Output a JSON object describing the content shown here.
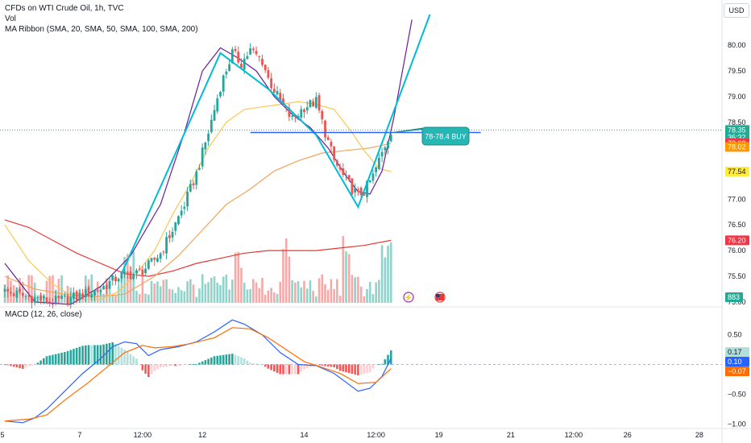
{
  "header": {
    "title": "CFDs on WTI Crude Oil, 1h, TVC",
    "vol_label": "Vol",
    "ma_ribbon_label": "MA Ribbon (SMA, 20, SMA, 50, SMA, 100, SMA, 200)",
    "macd_label": "MACD (12, 26, close)",
    "currency_button": "USD"
  },
  "annotation": {
    "label": "78-78.4 BUY"
  },
  "price_axis": {
    "ticks": [
      {
        "value": 80.0,
        "label": "80.00"
      },
      {
        "value": 79.5,
        "label": "79.50"
      },
      {
        "value": 79.0,
        "label": "79.00"
      },
      {
        "value": 78.5,
        "label": "78.50"
      },
      {
        "value": 77.0,
        "label": "77.00"
      },
      {
        "value": 76.5,
        "label": "76.50"
      },
      {
        "value": 76.0,
        "label": "76.00"
      },
      {
        "value": 75.5,
        "label": "75.50"
      },
      {
        "value": 75.0,
        "label": "75.00"
      }
    ],
    "tags": [
      {
        "value": 78.35,
        "label": "78.35",
        "sub": "36:32",
        "color": "#22ab94",
        "text": "light"
      },
      {
        "value": 78.09,
        "label": "78.09",
        "color": "#f23645",
        "text": "light"
      },
      {
        "value": 78.02,
        "label": "78.02",
        "color": "#ff9800",
        "text": "light"
      },
      {
        "value": 77.54,
        "label": "77.54",
        "color": "#ffeb3b",
        "text": "dark"
      },
      {
        "value": 76.2,
        "label": "76.20",
        "color": "#f23645",
        "text": "light"
      }
    ],
    "volume_tag": {
      "label": "883",
      "color": "#22ab94"
    }
  },
  "macd_axis": {
    "ticks": [
      {
        "value": 0.5,
        "label": "0.50"
      },
      {
        "value": -0.5,
        "label": "−0.50"
      },
      {
        "value": -1.0,
        "label": "−1.00"
      }
    ],
    "tags": [
      {
        "value": 0.17,
        "label": "0.17",
        "color": "#b2dfdb",
        "text": "dark"
      },
      {
        "value": 0.1,
        "label": "0.10",
        "color": "#2962ff",
        "text": "light"
      },
      {
        "value": -0.07,
        "label": "−0.07",
        "color": "#ff6d00",
        "text": "light"
      }
    ]
  },
  "time_axis": {
    "labels": [
      {
        "bar": -4,
        "label": "5"
      },
      {
        "bar": 25,
        "label": "7"
      },
      {
        "bar": 46,
        "label": "12:00"
      },
      {
        "bar": 66,
        "label": "12"
      },
      {
        "bar": 100,
        "label": "14"
      },
      {
        "bar": 124,
        "label": "12:00"
      },
      {
        "bar": 145,
        "label": "19"
      },
      {
        "bar": 169,
        "label": "21"
      },
      {
        "bar": 190,
        "label": "12:00"
      },
      {
        "bar": 208,
        "label": "26"
      },
      {
        "bar": 232,
        "label": "28"
      }
    ]
  },
  "colors": {
    "up": "#26a69a",
    "down": "#ef5350",
    "vol_up": "#8fd3cb",
    "vol_down": "#f7a9a7",
    "ma20": "#6a1b9a",
    "ma50": "#f9c74f",
    "ma100": "#f4a259",
    "ma200": "#e53935",
    "macd_line": "#2962ff",
    "signal_line": "#ff6d00",
    "drawing": "#00bcd4",
    "hline": "#2962ff"
  },
  "chart_data": {
    "type": "candlestick",
    "symbol": "WTI Crude Oil",
    "interval": "1h",
    "price_range": [
      74.95,
      80.6
    ],
    "close_path": [
      [
        0,
        75.2
      ],
      [
        8,
        75.1
      ],
      [
        16,
        75.0
      ],
      [
        24,
        75.1
      ],
      [
        32,
        75.25
      ],
      [
        38,
        75.5
      ],
      [
        44,
        75.55
      ],
      [
        48,
        75.7
      ],
      [
        52,
        75.95
      ],
      [
        56,
        76.4
      ],
      [
        60,
        76.9
      ],
      [
        64,
        77.5
      ],
      [
        68,
        78.3
      ],
      [
        72,
        79.2
      ],
      [
        76,
        79.85
      ],
      [
        79,
        79.65
      ],
      [
        82,
        79.9
      ],
      [
        86,
        79.7
      ],
      [
        88,
        79.35
      ],
      [
        92,
        78.9
      ],
      [
        96,
        78.55
      ],
      [
        100,
        78.8
      ],
      [
        104,
        78.9
      ],
      [
        107,
        78.3
      ],
      [
        110,
        77.75
      ],
      [
        113,
        77.45
      ],
      [
        116,
        77.2
      ],
      [
        118,
        77.1
      ],
      [
        120,
        77.15
      ],
      [
        123,
        77.45
      ],
      [
        126,
        77.9
      ],
      [
        129,
        78.35
      ]
    ],
    "ma_ribbon": {
      "sma20": [
        [
          0,
          75.75
        ],
        [
          10,
          75.0
        ],
        [
          22,
          74.95
        ],
        [
          32,
          75.3
        ],
        [
          42,
          75.9
        ],
        [
          52,
          76.9
        ],
        [
          60,
          78.3
        ],
        [
          66,
          79.5
        ],
        [
          72,
          79.95
        ],
        [
          78,
          79.75
        ],
        [
          84,
          79.5
        ],
        [
          90,
          79.0
        ],
        [
          96,
          78.65
        ],
        [
          102,
          78.4
        ],
        [
          108,
          78.0
        ],
        [
          114,
          77.45
        ],
        [
          118,
          77.15
        ],
        [
          122,
          77.1
        ],
        [
          126,
          77.55
        ],
        [
          130,
          78.6
        ],
        [
          136,
          80.5
        ]
      ],
      "sma50": [
        [
          0,
          76.5
        ],
        [
          8,
          75.8
        ],
        [
          16,
          75.35
        ],
        [
          24,
          75.05
        ],
        [
          32,
          75.05
        ],
        [
          38,
          75.2
        ],
        [
          44,
          75.55
        ],
        [
          50,
          76.0
        ],
        [
          56,
          76.7
        ],
        [
          62,
          77.3
        ],
        [
          68,
          78.0
        ],
        [
          74,
          78.5
        ],
        [
          80,
          78.75
        ],
        [
          86,
          78.8
        ],
        [
          92,
          78.85
        ],
        [
          98,
          78.9
        ],
        [
          104,
          78.85
        ],
        [
          110,
          78.75
        ],
        [
          116,
          78.3
        ],
        [
          120,
          77.95
        ],
        [
          125,
          77.6
        ],
        [
          129,
          77.54
        ]
      ],
      "sma100": [
        [
          0,
          75.5
        ],
        [
          10,
          75.25
        ],
        [
          20,
          75.15
        ],
        [
          30,
          75.1
        ],
        [
          40,
          75.15
        ],
        [
          50,
          75.5
        ],
        [
          58,
          75.9
        ],
        [
          66,
          76.4
        ],
        [
          74,
          76.9
        ],
        [
          82,
          77.2
        ],
        [
          90,
          77.55
        ],
        [
          98,
          77.75
        ],
        [
          106,
          77.9
        ],
        [
          114,
          77.95
        ],
        [
          122,
          78.0
        ],
        [
          129,
          78.09
        ]
      ],
      "sma200": [
        [
          0,
          76.6
        ],
        [
          8,
          76.45
        ],
        [
          16,
          76.2
        ],
        [
          24,
          75.95
        ],
        [
          32,
          75.75
        ],
        [
          40,
          75.55
        ],
        [
          48,
          75.5
        ],
        [
          56,
          75.6
        ],
        [
          64,
          75.75
        ],
        [
          72,
          75.85
        ],
        [
          80,
          75.95
        ],
        [
          88,
          76.0
        ],
        [
          96,
          76.0
        ],
        [
          104,
          76.0
        ],
        [
          112,
          76.05
        ],
        [
          120,
          76.1
        ],
        [
          129,
          76.2
        ]
      ]
    },
    "zigzag_drawing": [
      [
        39,
        75.55
      ],
      [
        72,
        79.85
      ],
      [
        88,
        79.15
      ],
      [
        104,
        78.25
      ],
      [
        118,
        76.85
      ],
      [
        142,
        80.6
      ]
    ],
    "horizontal_level": {
      "price": 78.3,
      "from_bar": 82,
      "to_bar": 159
    },
    "last_price": 78.35,
    "macd": {
      "range": [
        -1.05,
        0.78
      ],
      "macd_line": [
        [
          0,
          -0.95
        ],
        [
          6,
          -0.98
        ],
        [
          10,
          -0.9
        ],
        [
          14,
          -0.75
        ],
        [
          20,
          -0.45
        ],
        [
          26,
          -0.15
        ],
        [
          32,
          0.1
        ],
        [
          36,
          0.3
        ],
        [
          40,
          0.38
        ],
        [
          44,
          0.35
        ],
        [
          48,
          0.15
        ],
        [
          52,
          0.25
        ],
        [
          58,
          0.3
        ],
        [
          64,
          0.38
        ],
        [
          70,
          0.55
        ],
        [
          76,
          0.75
        ],
        [
          80,
          0.68
        ],
        [
          86,
          0.5
        ],
        [
          92,
          0.2
        ],
        [
          98,
          0.0
        ],
        [
          104,
          -0.02
        ],
        [
          110,
          -0.15
        ],
        [
          114,
          -0.3
        ],
        [
          118,
          -0.45
        ],
        [
          122,
          -0.4
        ],
        [
          126,
          -0.2
        ],
        [
          129,
          0.1
        ]
      ],
      "signal_line": [
        [
          0,
          -0.95
        ],
        [
          8,
          -0.92
        ],
        [
          14,
          -0.85
        ],
        [
          20,
          -0.6
        ],
        [
          28,
          -0.3
        ],
        [
          34,
          -0.05
        ],
        [
          40,
          0.2
        ],
        [
          46,
          0.32
        ],
        [
          50,
          0.28
        ],
        [
          56,
          0.3
        ],
        [
          62,
          0.35
        ],
        [
          70,
          0.45
        ],
        [
          76,
          0.62
        ],
        [
          82,
          0.6
        ],
        [
          88,
          0.45
        ],
        [
          94,
          0.25
        ],
        [
          100,
          0.05
        ],
        [
          106,
          -0.05
        ],
        [
          112,
          -0.15
        ],
        [
          118,
          -0.32
        ],
        [
          124,
          -0.3
        ],
        [
          129,
          -0.07
        ]
      ],
      "histogram_last": 0.17,
      "macd_last": 0.1,
      "signal_last": -0.07
    }
  }
}
